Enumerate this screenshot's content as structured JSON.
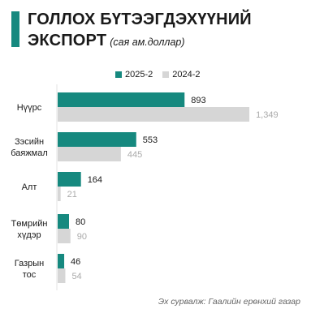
{
  "header": {
    "title_line1": "ГОЛЛОХ БҮТЭЭГДЭХҮҮНИЙ",
    "title_line2": "ЭКСПОРТ",
    "subtitle": "(сая ам.доллар)"
  },
  "colors": {
    "accent": "#16897f",
    "current": "#16897f",
    "previous": "#d6d6d6",
    "prev_label": "#aaaaaa"
  },
  "legend": [
    {
      "label": "2025-2",
      "color": "#16897f"
    },
    {
      "label": "2024-2",
      "color": "#d6d6d6"
    }
  ],
  "chart_data": {
    "type": "bar",
    "orientation": "horizontal",
    "categories": [
      "Нүүрс",
      "Зэсийн баяжмал",
      "Алт",
      "Төмрийн хүдэр",
      "Газрын тос"
    ],
    "series": [
      {
        "name": "2025-2",
        "values": [
          893,
          553,
          164,
          80,
          46
        ]
      },
      {
        "name": "2024-2",
        "values": [
          1349,
          445,
          21,
          90,
          54
        ]
      }
    ],
    "value_labels": {
      "2025-2": [
        "893",
        "553",
        "164",
        "80",
        "46"
      ],
      "2024-2": [
        "1,349",
        "445",
        "21",
        "90",
        "54"
      ]
    },
    "title": "ГОЛЛОХ БҮТЭЭГДЭХҮҮНИЙ ЭКСПОРТ",
    "ylabel": "",
    "xlabel": ""
  },
  "source": "Эх сурвалж: Гаалийн ерөнхий газар"
}
